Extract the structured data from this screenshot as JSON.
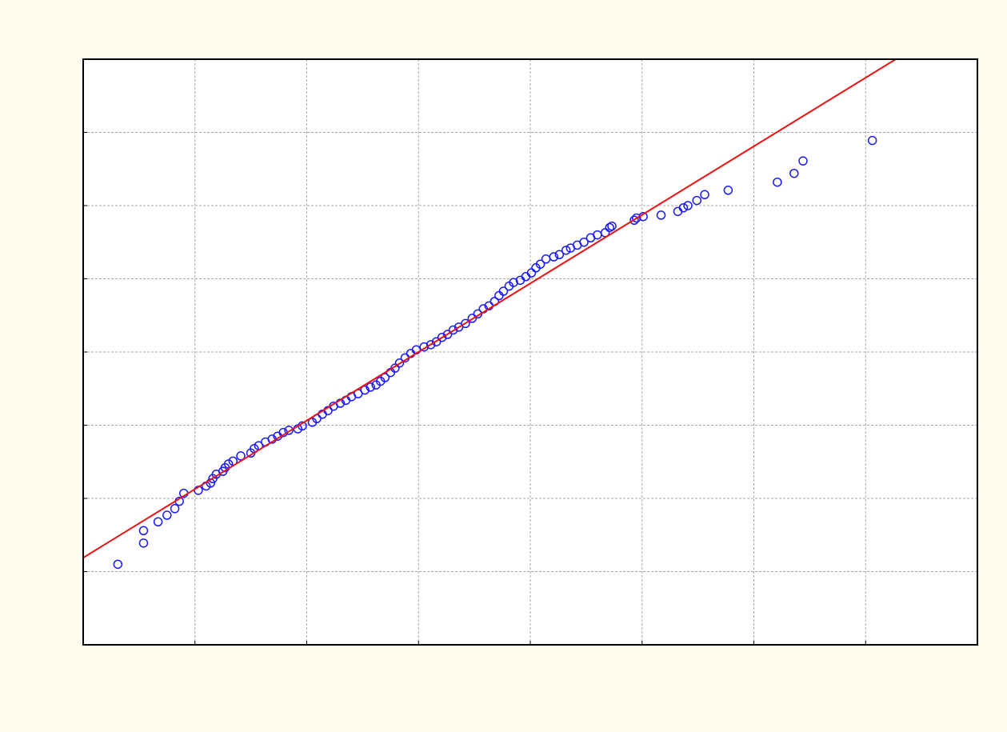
{
  "chart_data": {
    "type": "scatter",
    "xlim": [
      0,
      8
    ],
    "ylim": [
      0,
      8
    ],
    "xticks": [
      1,
      2,
      3,
      4,
      5,
      6,
      7
    ],
    "yticks": [
      1,
      2,
      3,
      4,
      5,
      6,
      7
    ],
    "grid": true,
    "series": [
      {
        "color": "#1a1aff",
        "marker": "circle",
        "x": [
          0.31,
          0.54,
          0.54,
          0.67,
          0.75,
          0.82,
          0.86,
          0.9,
          1.03,
          1.1,
          1.14,
          1.16,
          1.19,
          1.25,
          1.27,
          1.3,
          1.34,
          1.41,
          1.5,
          1.53,
          1.57,
          1.63,
          1.69,
          1.74,
          1.79,
          1.84,
          1.92,
          1.96,
          2.05,
          2.09,
          2.14,
          2.19,
          2.24,
          2.3,
          2.35,
          2.4,
          2.46,
          2.52,
          2.57,
          2.62,
          2.66,
          2.7,
          2.75,
          2.79,
          2.83,
          2.88,
          2.93,
          2.98,
          3.05,
          3.11,
          3.16,
          3.21,
          3.26,
          3.31,
          3.36,
          3.42,
          3.48,
          3.53,
          3.58,
          3.63,
          3.68,
          3.72,
          3.76,
          3.81,
          3.85,
          3.91,
          3.96,
          4.01,
          4.05,
          4.09,
          4.14,
          4.21,
          4.26,
          4.32,
          4.36,
          4.42,
          4.48,
          4.54,
          4.6,
          4.67,
          4.71,
          4.73,
          4.93,
          4.95,
          5.01,
          5.17,
          5.32,
          5.37,
          5.41,
          5.49,
          5.56,
          5.77,
          6.21,
          6.36,
          6.44,
          7.06
        ],
        "values": [
          1.1,
          1.39,
          1.56,
          1.68,
          1.77,
          1.86,
          1.96,
          2.07,
          2.11,
          2.17,
          2.21,
          2.27,
          2.33,
          2.37,
          2.42,
          2.47,
          2.51,
          2.58,
          2.62,
          2.68,
          2.72,
          2.77,
          2.81,
          2.85,
          2.9,
          2.93,
          2.95,
          2.99,
          3.04,
          3.09,
          3.15,
          3.2,
          3.26,
          3.3,
          3.34,
          3.39,
          3.43,
          3.48,
          3.52,
          3.55,
          3.6,
          3.65,
          3.72,
          3.78,
          3.85,
          3.92,
          3.98,
          4.03,
          4.07,
          4.1,
          4.14,
          4.2,
          4.24,
          4.3,
          4.34,
          4.39,
          4.46,
          4.52,
          4.59,
          4.63,
          4.69,
          4.77,
          4.83,
          4.9,
          4.95,
          4.98,
          5.03,
          5.08,
          5.15,
          5.2,
          5.27,
          5.3,
          5.33,
          5.39,
          5.42,
          5.46,
          5.5,
          5.56,
          5.6,
          5.63,
          5.7,
          5.72,
          5.8,
          5.83,
          5.85,
          5.87,
          5.92,
          5.97,
          6.0,
          6.07,
          6.15,
          6.21,
          6.32,
          6.44,
          6.61,
          6.89
        ]
      },
      {
        "color": "#ee1111",
        "marker": "line",
        "x": [
          0,
          7.27
        ],
        "values": [
          1.19,
          8
        ]
      }
    ]
  }
}
